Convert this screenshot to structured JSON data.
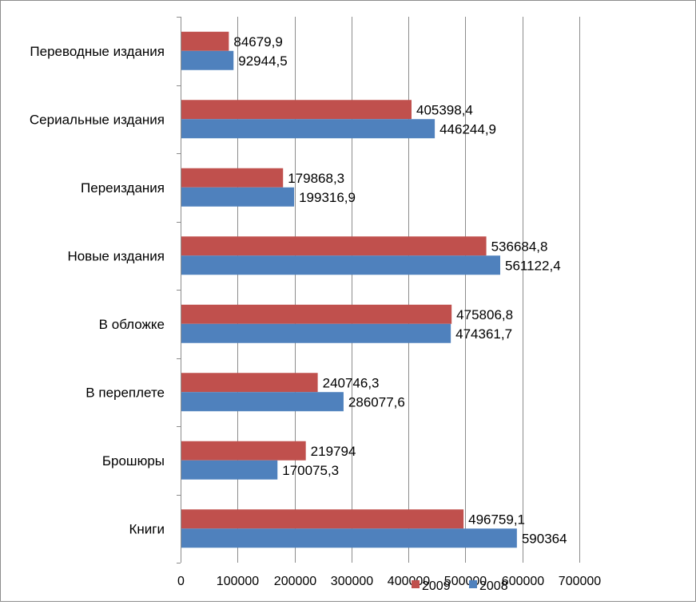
{
  "chart_data": {
    "type": "bar",
    "orientation": "horizontal",
    "categories": [
      "Переводные издания",
      "Сериальные издания",
      "Переиздания",
      "Новые издания",
      "В обложке",
      "В переплете",
      "Брошюры",
      "Книги"
    ],
    "series": [
      {
        "name": "2009",
        "color": "#c0504d",
        "values": [
          84679.9,
          405398.4,
          179868.3,
          536684.8,
          475806.8,
          240746.3,
          219794,
          496759.1
        ],
        "labels": [
          "84679,9",
          "405398,4",
          "179868,3",
          "536684,8",
          "475806,8",
          "240746,3",
          "219794",
          "496759,1"
        ]
      },
      {
        "name": "2008",
        "color": "#4f81bd",
        "values": [
          92944.5,
          446244.9,
          199316.9,
          561122.4,
          474361.7,
          286077.6,
          170075.3,
          590364
        ],
        "labels": [
          "92944,5",
          "446244,9",
          "199316,9",
          "561122,4",
          "474361,7",
          "286077,6",
          "170075,3",
          "590364"
        ]
      }
    ],
    "xlim": [
      0,
      700000
    ],
    "xticks": [
      0,
      100000,
      200000,
      300000,
      400000,
      500000,
      600000,
      700000
    ],
    "xtick_labels": [
      "0",
      "100000",
      "200000",
      "300000",
      "400000",
      "500000",
      "600000",
      "700000"
    ],
    "grid": true,
    "legend_position": "bottom"
  }
}
